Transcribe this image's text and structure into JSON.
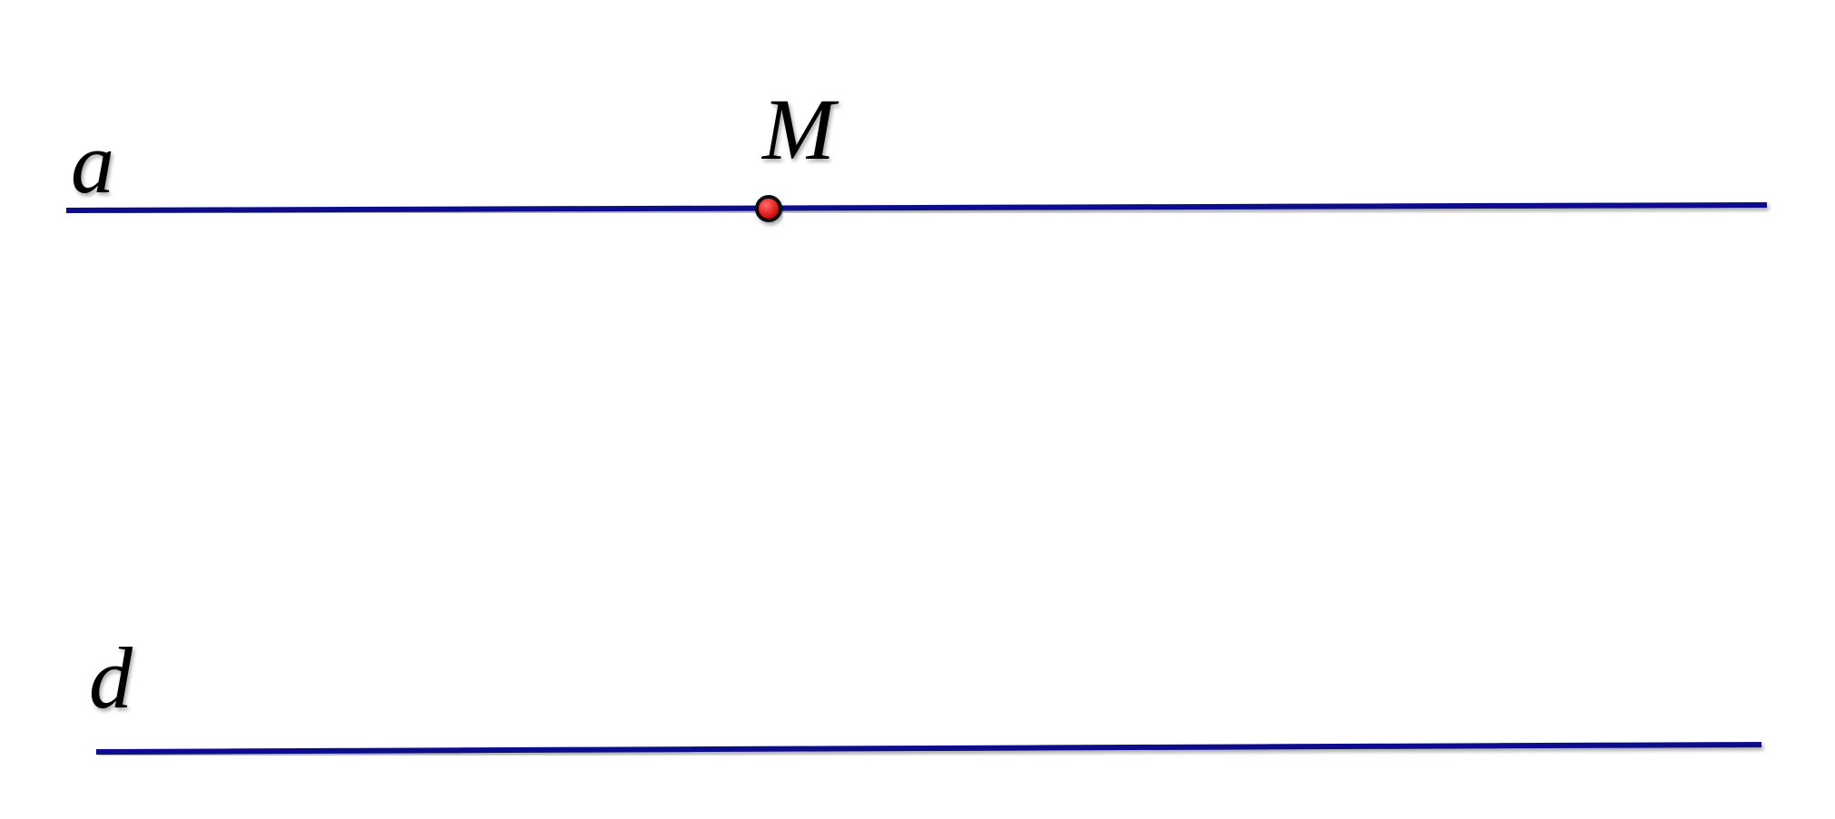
{
  "diagram": {
    "lines": [
      {
        "name": "a",
        "label": "a",
        "color": "#0a0a8c"
      },
      {
        "name": "d",
        "label": "d",
        "color": "#0a0a8c"
      }
    ],
    "points": [
      {
        "name": "M",
        "label": "M",
        "on_line": "a",
        "color": "#e01010"
      }
    ]
  }
}
